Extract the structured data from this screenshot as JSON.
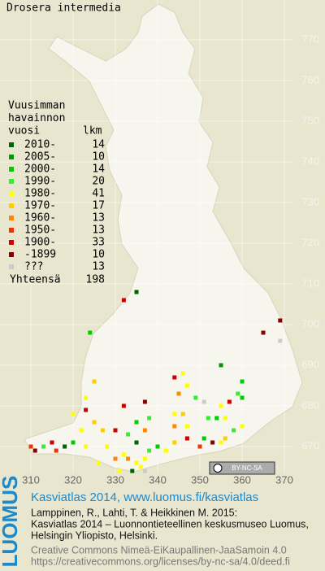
{
  "title": "Drosera intermedia",
  "legend": {
    "heading": [
      "Vuusimman",
      "havainnon"
    ],
    "col1": "vuosi",
    "col2": "lkm",
    "rows": [
      {
        "label": "2010-",
        "count": 14,
        "color": "#006400"
      },
      {
        "label": "2005-",
        "count": 10,
        "color": "#009900"
      },
      {
        "label": "2000-",
        "count": 14,
        "color": "#00cc00"
      },
      {
        "label": "1990-",
        "count": 20,
        "color": "#33ee33"
      },
      {
        "label": "1980-",
        "count": 41,
        "color": "#ffff00"
      },
      {
        "label": "1970-",
        "count": 17,
        "color": "#ffcc00"
      },
      {
        "label": "1960-",
        "count": 13,
        "color": "#ff8800"
      },
      {
        "label": "1950-",
        "count": 13,
        "color": "#ee3300"
      },
      {
        "label": "1900-",
        "count": 33,
        "color": "#cc0000"
      },
      {
        "label": "-1899",
        "count": 10,
        "color": "#880000"
      },
      {
        "label": "???",
        "count": 13,
        "color": "#cccccc"
      }
    ],
    "total_label": "Yhteensä",
    "total": 198
  },
  "grid": {
    "xticks": [
      310,
      320,
      330,
      340,
      350,
      360,
      370
    ],
    "yticks": [
      670,
      680,
      690,
      700,
      710,
      720,
      730,
      740,
      750,
      760,
      770
    ]
  },
  "badge": "BY-NC-SA",
  "squares": [
    {
      "x": 335,
      "y": 708,
      "p": 0
    },
    {
      "x": 332,
      "y": 706,
      "p": 8
    },
    {
      "x": 324,
      "y": 698,
      "p": 2
    },
    {
      "x": 369,
      "y": 701,
      "p": 9
    },
    {
      "x": 365,
      "y": 698,
      "p": 9
    },
    {
      "x": 369,
      "y": 696,
      "p": 10
    },
    {
      "x": 355,
      "y": 690,
      "p": 1
    },
    {
      "x": 344,
      "y": 687,
      "p": 8
    },
    {
      "x": 346,
      "y": 688,
      "p": 4
    },
    {
      "x": 347,
      "y": 685,
      "p": 4
    },
    {
      "x": 345,
      "y": 683,
      "p": 6
    },
    {
      "x": 360,
      "y": 686,
      "p": 2
    },
    {
      "x": 359,
      "y": 683,
      "p": 3
    },
    {
      "x": 325,
      "y": 686,
      "p": 5
    },
    {
      "x": 323,
      "y": 682,
      "p": 4
    },
    {
      "x": 323,
      "y": 679,
      "p": 8
    },
    {
      "x": 332,
      "y": 680,
      "p": 8
    },
    {
      "x": 337,
      "y": 681,
      "p": 9
    },
    {
      "x": 349,
      "y": 682,
      "p": 3
    },
    {
      "x": 351,
      "y": 681,
      "p": 10
    },
    {
      "x": 355,
      "y": 680,
      "p": 4
    },
    {
      "x": 357,
      "y": 681,
      "p": 8
    },
    {
      "x": 360,
      "y": 682,
      "p": 2
    },
    {
      "x": 344,
      "y": 678,
      "p": 4
    },
    {
      "x": 346,
      "y": 678,
      "p": 5
    },
    {
      "x": 352,
      "y": 677,
      "p": 3
    },
    {
      "x": 354,
      "y": 677,
      "p": 2
    },
    {
      "x": 356,
      "y": 677,
      "p": 4
    },
    {
      "x": 338,
      "y": 677,
      "p": 3
    },
    {
      "x": 335,
      "y": 676,
      "p": 2
    },
    {
      "x": 320,
      "y": 678,
      "p": 4
    },
    {
      "x": 325,
      "y": 676,
      "p": 5
    },
    {
      "x": 322,
      "y": 674,
      "p": 4
    },
    {
      "x": 327,
      "y": 674,
      "p": 5
    },
    {
      "x": 330,
      "y": 674,
      "p": 8
    },
    {
      "x": 310,
      "y": 670,
      "p": 7
    },
    {
      "x": 311,
      "y": 669,
      "p": 9
    },
    {
      "x": 313,
      "y": 670,
      "p": 3
    },
    {
      "x": 315,
      "y": 671,
      "p": 8
    },
    {
      "x": 316,
      "y": 669,
      "p": 7
    },
    {
      "x": 318,
      "y": 670,
      "p": 0
    },
    {
      "x": 320,
      "y": 671,
      "p": 2
    },
    {
      "x": 323,
      "y": 670,
      "p": 4
    },
    {
      "x": 328,
      "y": 670,
      "p": 4
    },
    {
      "x": 332,
      "y": 668,
      "p": 4
    },
    {
      "x": 333,
      "y": 667,
      "p": 6
    },
    {
      "x": 335,
      "y": 666,
      "p": 4
    },
    {
      "x": 337,
      "y": 667,
      "p": 4
    },
    {
      "x": 338,
      "y": 669,
      "p": 3
    },
    {
      "x": 340,
      "y": 670,
      "p": 2
    },
    {
      "x": 342,
      "y": 669,
      "p": 4
    },
    {
      "x": 344,
      "y": 671,
      "p": 5
    },
    {
      "x": 347,
      "y": 672,
      "p": 8
    },
    {
      "x": 350,
      "y": 670,
      "p": 7
    },
    {
      "x": 351,
      "y": 672,
      "p": 2
    },
    {
      "x": 353,
      "y": 671,
      "p": 9
    },
    {
      "x": 355,
      "y": 671,
      "p": 4
    },
    {
      "x": 356,
      "y": 672,
      "p": 5
    },
    {
      "x": 358,
      "y": 674,
      "p": 3
    },
    {
      "x": 360,
      "y": 675,
      "p": 4
    },
    {
      "x": 336,
      "y": 665,
      "p": 4
    },
    {
      "x": 331,
      "y": 664,
      "p": 4
    },
    {
      "x": 334,
      "y": 664,
      "p": 0
    },
    {
      "x": 337,
      "y": 664,
      "p": 10
    },
    {
      "x": 330,
      "y": 667,
      "p": 6
    },
    {
      "x": 326,
      "y": 666,
      "p": 4
    },
    {
      "x": 333,
      "y": 673,
      "p": 3
    },
    {
      "x": 335,
      "y": 671,
      "p": 0
    },
    {
      "x": 337,
      "y": 674,
      "p": 6
    },
    {
      "x": 344,
      "y": 675,
      "p": 6
    },
    {
      "x": 347,
      "y": 675,
      "p": 4
    }
  ],
  "footer": {
    "logo": "LUOMUS",
    "link": "Kasviatlas 2014, www.luomus.fi/kasviatlas",
    "citation": [
      "Lamppinen, R., Lahti, T. & Heikkinen M. 2015:",
      "Kasviatlas 2014 – Luonnontieteellinen keskusmuseo Luomus,",
      "Helsingin Yliopisto, Helsinki."
    ],
    "license": [
      "Creative Commons Nimeä-EiKaupallinen-JaaSamoin 4.0",
      "https://creativecommons.org/licenses/by-nc-sa/4.0/deed.fi"
    ]
  }
}
